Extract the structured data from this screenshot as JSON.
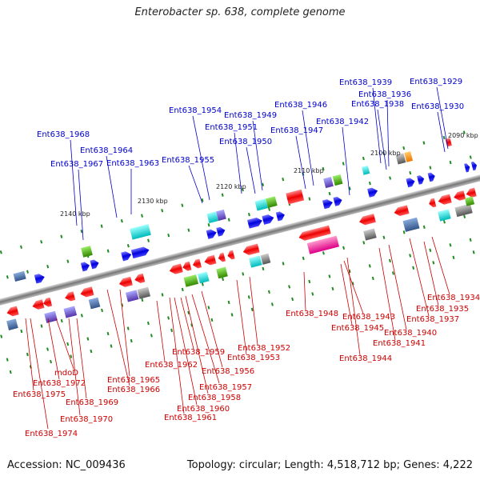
{
  "title": "Enterobacter sp. 638, complete genome",
  "footer": {
    "accession": "Accession: NC_009436",
    "summary": "Topology: circular; Length: 4,518,712 bp; Genes: 4,222"
  },
  "colors": {
    "top_label": "#0000cc",
    "bottom_label": "#cc0000",
    "forward_gene": "#0000dd",
    "reverse_gene": "#ee0000",
    "backbone": "#888888",
    "tick": "#228b22"
  },
  "kbp_marks": [
    {
      "label": "2140 kbp"
    },
    {
      "label": "2130 kbp"
    },
    {
      "label": "2120 kbp"
    },
    {
      "label": "2110 kbp"
    },
    {
      "label": "2100 kbp"
    },
    {
      "label": "2090 kbp"
    }
  ],
  "top_labels": [
    "Ent638_1968",
    "Ent638_1967",
    "Ent638_1964",
    "Ent638_1963",
    "Ent638_1955",
    "Ent638_1954",
    "Ent638_1951",
    "Ent638_1949",
    "Ent638_1950",
    "Ent638_1947",
    "Ent638_1946",
    "Ent638_1942",
    "Ent638_1939",
    "Ent638_1936",
    "Ent638_1938",
    "Ent638_1929",
    "Ent638_1930"
  ],
  "bottom_labels": [
    "Ent638_1975",
    "Ent638_1974",
    "Ent638_1972",
    "mdoD",
    "Ent638_1970",
    "Ent638_1969",
    "Ent638_1965",
    "Ent638_1966",
    "Ent638_1962",
    "Ent638_1959",
    "Ent638_1961",
    "Ent638_1960",
    "Ent638_1958",
    "Ent638_1957",
    "Ent638_1956",
    "Ent638_1953",
    "Ent638_1952",
    "Ent638_1948",
    "Ent638_1945",
    "Ent638_1943",
    "Ent638_1944",
    "Ent638_1941",
    "Ent638_1940",
    "Ent638_1937",
    "Ent638_1935",
    "Ent638_1934"
  ]
}
